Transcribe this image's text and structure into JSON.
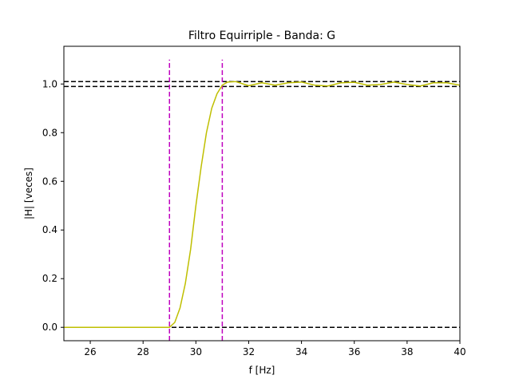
{
  "chart_data": {
    "type": "line",
    "title": "Filtro Equirriple - Banda: G",
    "xlabel": "f [Hz]",
    "ylabel": "|H| [veces]",
    "xlim": [
      25,
      40
    ],
    "ylim": [
      -0.055,
      1.155
    ],
    "x_ticks": [
      26,
      28,
      30,
      32,
      34,
      36,
      38,
      40
    ],
    "y_ticks": [
      0.0,
      0.2,
      0.4,
      0.6,
      0.8,
      1.0
    ],
    "x_tick_labels": [
      "26",
      "28",
      "30",
      "32",
      "34",
      "36",
      "38",
      "40"
    ],
    "y_tick_labels": [
      "0.0",
      "0.2",
      "0.4",
      "0.6",
      "0.8",
      "1.0"
    ],
    "grid": false,
    "series": [
      {
        "color": "#bfbf00",
        "x": [
          25,
          26,
          27,
          28,
          28.5,
          29,
          29.2,
          29.4,
          29.6,
          29.8,
          30,
          30.2,
          30.4,
          30.6,
          30.8,
          31,
          31.2,
          31.5,
          32,
          32.5,
          33,
          33.5,
          34,
          34.5,
          35,
          35.5,
          36,
          36.5,
          37,
          37.5,
          38,
          38.5,
          39,
          39.5,
          40
        ],
        "y": [
          0.0,
          0.0,
          0.0,
          0.0,
          0.0,
          0.0,
          0.02,
          0.08,
          0.18,
          0.32,
          0.5,
          0.66,
          0.8,
          0.9,
          0.96,
          0.995,
          1.008,
          1.01,
          0.993,
          1.005,
          0.995,
          1.005,
          1.008,
          0.995,
          0.992,
          1.005,
          1.007,
          0.995,
          0.998,
          1.008,
          0.998,
          0.992,
          1.005,
          1.005,
          0.995
        ]
      }
    ],
    "hlines": [
      {
        "y": 1.01,
        "color": "#000000",
        "style": "dashed"
      },
      {
        "y": 0.99,
        "color": "#000000",
        "style": "dashed"
      },
      {
        "y": 0.0,
        "color": "#000000",
        "style": "dashed"
      }
    ],
    "vlines": [
      {
        "x": 29,
        "ymin": -0.055,
        "ymax": 1.1,
        "color": "#bf00bf",
        "style": "dashed"
      },
      {
        "x": 31,
        "ymin": -0.055,
        "ymax": 1.1,
        "color": "#bf00bf",
        "style": "dashed"
      }
    ]
  }
}
